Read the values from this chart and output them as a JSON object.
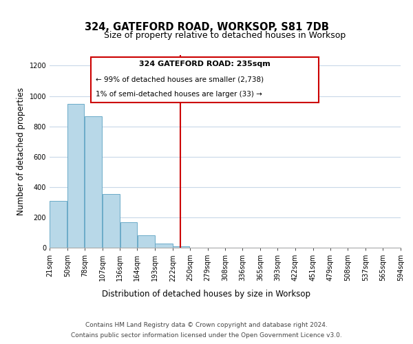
{
  "title": "324, GATEFORD ROAD, WORKSOP, S81 7DB",
  "subtitle": "Size of property relative to detached houses in Worksop",
  "xlabel": "Distribution of detached houses by size in Worksop",
  "ylabel": "Number of detached properties",
  "bar_edges": [
    21,
    50,
    78,
    107,
    136,
    164,
    193,
    222,
    250,
    279,
    308,
    336,
    365,
    393,
    422,
    451,
    479,
    508,
    537,
    565,
    594
  ],
  "bar_heights": [
    310,
    950,
    865,
    355,
    170,
    80,
    25,
    10,
    0,
    0,
    0,
    0,
    0,
    0,
    0,
    0,
    0,
    0,
    0,
    0
  ],
  "bar_color": "#b8d8e8",
  "bar_edge_color": "#6aaac8",
  "vline_x": 235,
  "vline_color": "#cc0000",
  "ann_line1": "324 GATEFORD ROAD: 235sqm",
  "ann_line2": "← 99% of detached houses are smaller (2,738)",
  "ann_line3": "1% of semi-detached houses are larger (33) →",
  "ylim": [
    0,
    1270
  ],
  "yticks": [
    0,
    200,
    400,
    600,
    800,
    1000,
    1200
  ],
  "tick_labels": [
    "21sqm",
    "50sqm",
    "78sqm",
    "107sqm",
    "136sqm",
    "164sqm",
    "193sqm",
    "222sqm",
    "250sqm",
    "279sqm",
    "308sqm",
    "336sqm",
    "365sqm",
    "393sqm",
    "422sqm",
    "451sqm",
    "479sqm",
    "508sqm",
    "537sqm",
    "565sqm",
    "594sqm"
  ],
  "footer_line1": "Contains HM Land Registry data © Crown copyright and database right 2024.",
  "footer_line2": "Contains public sector information licensed under the Open Government Licence v3.0.",
  "bg_color": "#ffffff",
  "grid_color": "#c8d8e8",
  "title_fontsize": 10.5,
  "subtitle_fontsize": 9,
  "axis_label_fontsize": 8.5,
  "tick_fontsize": 7,
  "annotation_fontsize": 8,
  "footer_fontsize": 6.5
}
